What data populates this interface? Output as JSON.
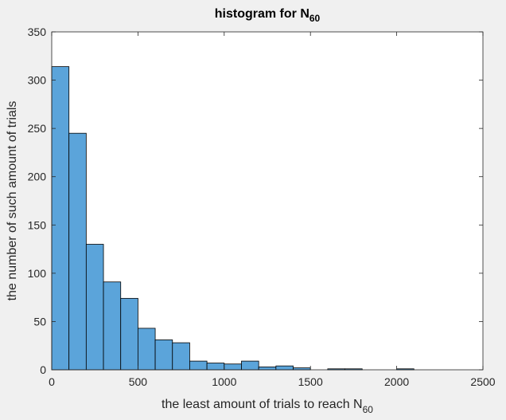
{
  "chart_data": {
    "type": "bar",
    "title": {
      "text": "histogram for N",
      "subscript": "60"
    },
    "xlabel": {
      "text": "the least amount of trials to reach N",
      "subscript": "60"
    },
    "ylabel": "the number of such amount of trials",
    "xlim": [
      0,
      2500
    ],
    "ylim": [
      0,
      350
    ],
    "xticks": [
      0,
      500,
      1000,
      1500,
      2000,
      2500
    ],
    "yticks": [
      0,
      50,
      100,
      150,
      200,
      250,
      300,
      350
    ],
    "grid": false,
    "bar_color": "#5ba4da",
    "edge_color": "#000000",
    "bins": [
      {
        "x0": 0,
        "x1": 100,
        "count": 314
      },
      {
        "x0": 100,
        "x1": 200,
        "count": 245
      },
      {
        "x0": 200,
        "x1": 300,
        "count": 130
      },
      {
        "x0": 300,
        "x1": 400,
        "count": 91
      },
      {
        "x0": 400,
        "x1": 500,
        "count": 74
      },
      {
        "x0": 500,
        "x1": 600,
        "count": 43
      },
      {
        "x0": 600,
        "x1": 700,
        "count": 31
      },
      {
        "x0": 700,
        "x1": 800,
        "count": 28
      },
      {
        "x0": 800,
        "x1": 900,
        "count": 9
      },
      {
        "x0": 900,
        "x1": 1000,
        "count": 7
      },
      {
        "x0": 1000,
        "x1": 1100,
        "count": 6
      },
      {
        "x0": 1100,
        "x1": 1200,
        "count": 9
      },
      {
        "x0": 1200,
        "x1": 1300,
        "count": 3
      },
      {
        "x0": 1300,
        "x1": 1400,
        "count": 4
      },
      {
        "x0": 1400,
        "x1": 1500,
        "count": 2
      },
      {
        "x0": 1500,
        "x1": 1600,
        "count": 0
      },
      {
        "x0": 1600,
        "x1": 1700,
        "count": 1
      },
      {
        "x0": 1700,
        "x1": 1800,
        "count": 1
      },
      {
        "x0": 1800,
        "x1": 1900,
        "count": 0
      },
      {
        "x0": 1900,
        "x1": 2000,
        "count": 0
      },
      {
        "x0": 2000,
        "x1": 2100,
        "count": 1
      }
    ]
  }
}
